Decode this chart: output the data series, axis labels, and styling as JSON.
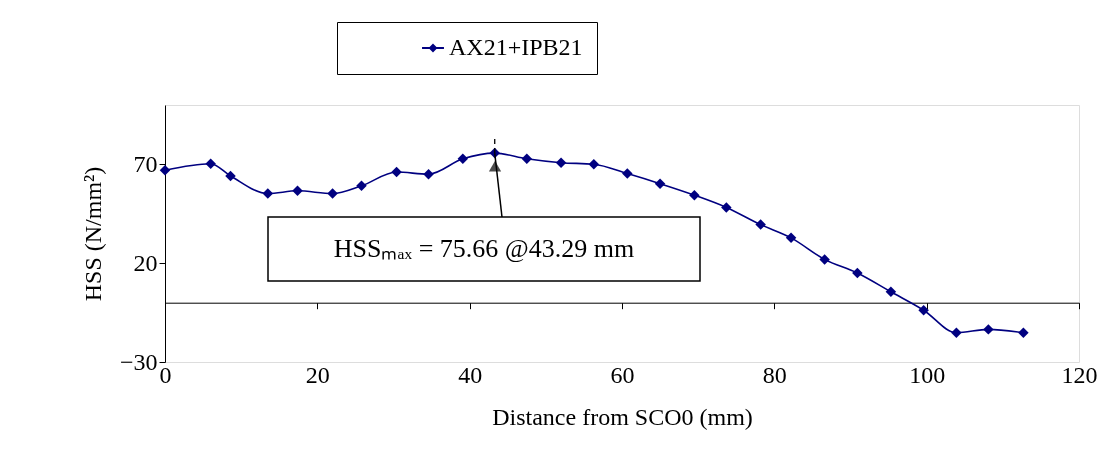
{
  "chart_data": {
    "type": "line",
    "xlabel": "Distance from SCO0 (mm)",
    "ylabel": "HSS (N/mm²)",
    "x": [
      0,
      6.0,
      8.6,
      13.5,
      17.4,
      22.0,
      25.8,
      30.4,
      34.6,
      39.1,
      43.29,
      47.5,
      52.0,
      56.3,
      60.7,
      65.0,
      69.5,
      73.7,
      78.2,
      82.2,
      86.6,
      90.9,
      95.3,
      99.6,
      103.9,
      108.1,
      112.7
    ],
    "series": [
      {
        "name": "AX21+IPB21",
        "color": "#000080",
        "values": [
          67.0,
          70.3,
          64.1,
          55.2,
          56.6,
          55.2,
          59.1,
          66.1,
          65.0,
          72.8,
          75.66,
          72.8,
          70.8,
          70.0,
          65.3,
          60.2,
          54.4,
          48.2,
          39.5,
          32.8,
          21.9,
          15.0,
          5.5,
          -3.8,
          -15.2,
          -13.5,
          -15.2
        ]
      }
    ],
    "xlim": [
      0,
      120
    ],
    "xticks": [
      0,
      20,
      40,
      60,
      80,
      100,
      120
    ],
    "ylim": [
      -30,
      100
    ],
    "yticks": [
      -30,
      20,
      70
    ],
    "annotations": [
      {
        "text": "HSSₘₐₓ = 75.66 @43.29 mm",
        "x": 43.29,
        "y": 75.66
      }
    ],
    "grid": false,
    "legend": "top",
    "marker": "diamond",
    "line_style": "solid"
  }
}
